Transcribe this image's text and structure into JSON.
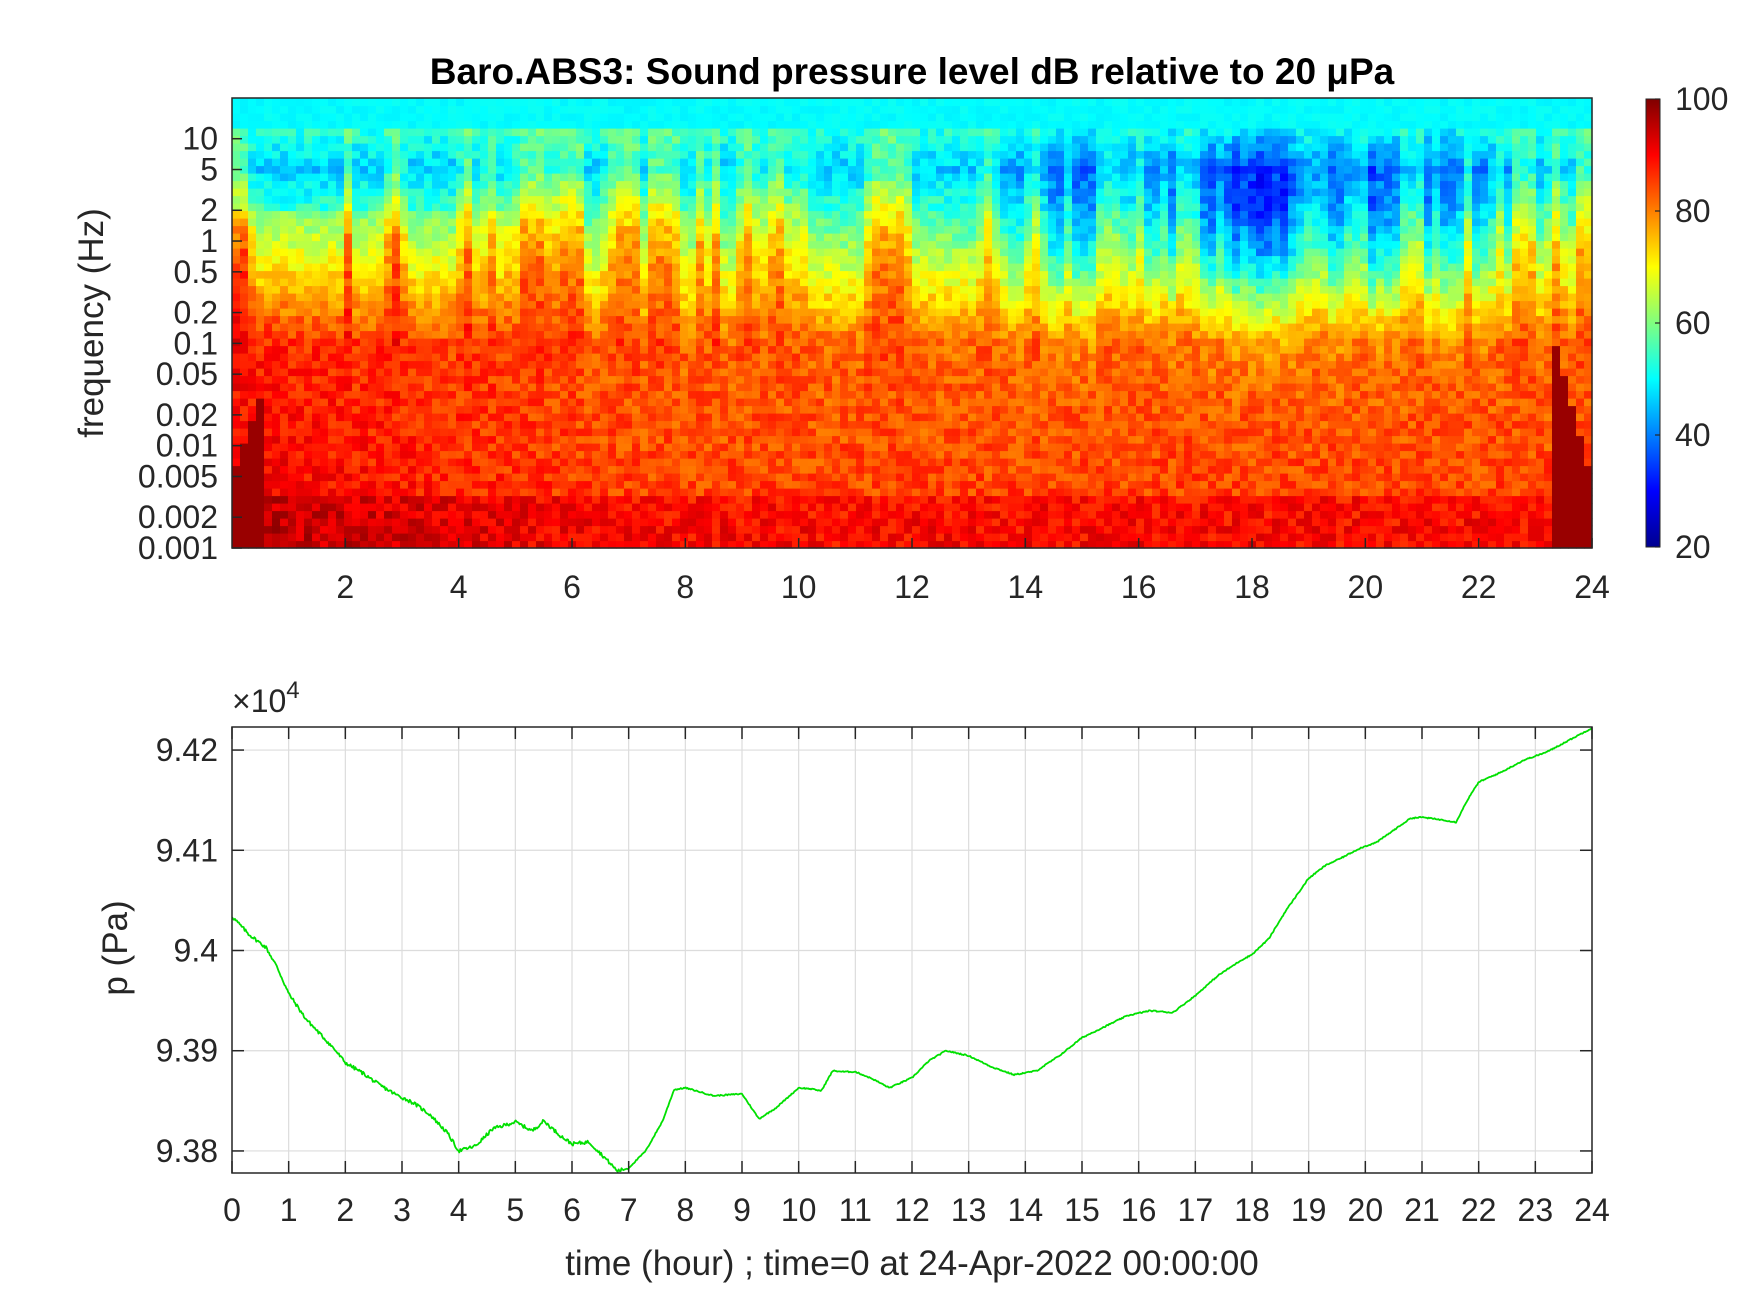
{
  "figure": {
    "background": "#ffffff"
  },
  "spectrogram": {
    "title": "Baro.ABS3: Sound pressure level dB relative to 20 μPa",
    "ylabel": "frequency (Hz)",
    "xlabel": "",
    "x_ticks": [
      2,
      4,
      6,
      8,
      10,
      12,
      14,
      16,
      18,
      20,
      22,
      24
    ],
    "xlim": [
      0,
      24
    ],
    "y_ticks": [
      0.001,
      0.002,
      0.005,
      0.01,
      0.02,
      0.05,
      0.1,
      0.2,
      0.5,
      1,
      2,
      5,
      10
    ],
    "y_tick_labels": [
      "0.001",
      "0.002",
      "0.005",
      "0.01",
      "0.02",
      "0.05",
      "0.1",
      "0.2",
      "0.5",
      "1",
      "2",
      "5",
      "10"
    ],
    "ylim": [
      0.001,
      25
    ],
    "y_scale": "log",
    "colormap": "jet",
    "colorbar": {
      "ticks": [
        20,
        40,
        60,
        80,
        100
      ],
      "tick_labels": [
        "20",
        "40",
        "60",
        "80",
        "100"
      ],
      "range": [
        20,
        100
      ]
    }
  },
  "chart_data": {
    "type": "line",
    "title": "",
    "xlabel": "time (hour) ; time=0 at 24-Apr-2022 00:00:00",
    "ylabel": "p (Pa)",
    "exponent_label": "×10",
    "exponent_power": "4",
    "xlim": [
      0,
      24
    ],
    "ylim": [
      9.3778,
      9.4223
    ],
    "x_ticks": [
      0,
      1,
      2,
      3,
      4,
      5,
      6,
      7,
      8,
      9,
      10,
      11,
      12,
      13,
      14,
      15,
      16,
      17,
      18,
      19,
      20,
      21,
      22,
      23,
      24
    ],
    "x_tick_labels": [
      "0",
      "1",
      "2",
      "3",
      "4",
      "5",
      "6",
      "7",
      "8",
      "9",
      "10",
      "11",
      "12",
      "13",
      "14",
      "15",
      "16",
      "17",
      "18",
      "19",
      "20",
      "21",
      "22",
      "23",
      "24"
    ],
    "y_ticks": [
      9.38,
      9.39,
      9.4,
      9.41,
      9.42
    ],
    "y_tick_labels": [
      "9.38",
      "9.39",
      "9.4",
      "9.41",
      "9.42"
    ],
    "grid": true,
    "line_color": "#00e000",
    "series": [
      {
        "x": [
          0,
          0.3,
          0.6,
          0.8,
          1.0,
          1.3,
          1.6,
          1.8,
          2.0,
          2.3,
          2.6,
          2.9,
          3.2,
          3.5,
          3.8,
          4.0,
          4.3,
          4.6,
          5.0,
          5.3,
          5.5,
          5.8,
          6.0,
          6.3,
          6.6,
          6.8,
          7.0,
          7.3,
          7.6,
          7.8,
          8.0,
          8.5,
          9.0,
          9.3,
          9.6,
          10.0,
          10.2,
          10.4,
          10.6,
          10.8,
          11.0,
          11.3,
          11.6,
          12.0,
          12.3,
          12.6,
          13.0,
          13.4,
          13.8,
          14.2,
          14.6,
          15.0,
          15.4,
          15.8,
          16.2,
          16.6,
          17.0,
          17.4,
          17.8,
          18.0,
          18.3,
          18.6,
          19.0,
          19.3,
          19.6,
          19.9,
          20.2,
          20.5,
          20.8,
          21.0,
          21.4,
          21.6,
          21.8,
          22.0,
          22.4,
          22.8,
          23.2,
          23.6,
          24.0
        ],
        "y": [
          9.4034,
          9.4016,
          9.4003,
          9.3983,
          9.3957,
          9.3932,
          9.3914,
          9.3902,
          9.3888,
          9.3878,
          9.3866,
          9.3856,
          9.3848,
          9.3836,
          9.3818,
          9.38,
          9.3805,
          9.3822,
          9.3829,
          9.382,
          9.383,
          9.3815,
          9.3807,
          9.3809,
          9.3792,
          9.378,
          9.3783,
          9.38,
          9.383,
          9.3861,
          9.3863,
          9.3855,
          9.3857,
          9.3832,
          9.3843,
          9.3863,
          9.3862,
          9.386,
          9.388,
          9.3879,
          9.3879,
          9.3872,
          9.3863,
          9.3873,
          9.389,
          9.39,
          9.3895,
          9.3884,
          9.3876,
          9.388,
          9.3895,
          9.3913,
          9.3924,
          9.3935,
          9.394,
          9.3938,
          9.3955,
          9.3975,
          9.399,
          9.3996,
          9.4012,
          9.404,
          9.4072,
          9.4085,
          9.4093,
          9.4102,
          9.4108,
          9.412,
          9.4132,
          9.4133,
          9.413,
          9.4128,
          9.415,
          9.4168,
          9.4178,
          9.419,
          9.4198,
          9.421,
          9.4222
        ]
      }
    ]
  }
}
